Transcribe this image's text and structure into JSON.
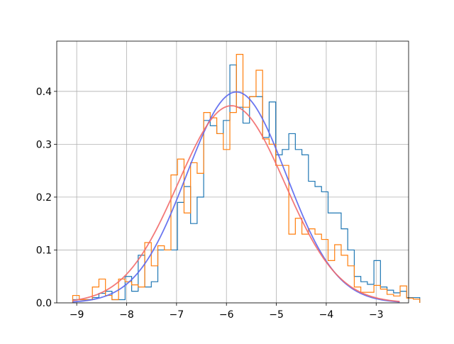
{
  "chart_data": {
    "type": "histogram",
    "title": "",
    "xlabel": "",
    "ylabel": "",
    "xlim": [
      -9.4,
      -2.35
    ],
    "ylim": [
      0.0,
      0.495
    ],
    "grid": true,
    "legend": "none",
    "x_ticks": [
      {
        "value": -9,
        "label": "−9"
      },
      {
        "value": -8,
        "label": "−8"
      },
      {
        "value": -7,
        "label": "−7"
      },
      {
        "value": -6,
        "label": "−6"
      },
      {
        "value": -5,
        "label": "−5"
      },
      {
        "value": -4,
        "label": "−4"
      },
      {
        "value": -3,
        "label": "−3"
      }
    ],
    "y_ticks": [
      {
        "value": 0.0,
        "label": "0.0"
      },
      {
        "value": 0.1,
        "label": "0.1"
      },
      {
        "value": 0.2,
        "label": "0.2"
      },
      {
        "value": 0.3,
        "label": "0.3"
      },
      {
        "value": 0.4,
        "label": "0.4"
      }
    ],
    "series": [
      {
        "color": "#1f77b4",
        "style": "step",
        "x_start": -9.08,
        "bin_width": 0.1312,
        "values": [
          0.006,
          0.006,
          0.006,
          0.01,
          0.018,
          0.022,
          0.006,
          0.006,
          0.05,
          0.022,
          0.09,
          0.03,
          0.04,
          0.1,
          0.1,
          0.1,
          0.19,
          0.22,
          0.15,
          0.2,
          0.345,
          0.335,
          0.32,
          0.345,
          0.45,
          0.37,
          0.34,
          0.39,
          0.39,
          0.313,
          0.38,
          0.28,
          0.29,
          0.32,
          0.29,
          0.28,
          0.23,
          0.22,
          0.21,
          0.17,
          0.17,
          0.14,
          0.1,
          0.05,
          0.04,
          0.035,
          0.08,
          0.03,
          0.024,
          0.019,
          0.022,
          0.01,
          0.01
        ]
      },
      {
        "color": "#ff7f0e",
        "style": "step",
        "x_start": -9.08,
        "bin_width": 0.1312,
        "values": [
          0.014,
          0.006,
          0.006,
          0.03,
          0.045,
          0.014,
          0.006,
          0.045,
          0.04,
          0.034,
          0.03,
          0.114,
          0.07,
          0.108,
          0.1,
          0.242,
          0.272,
          0.17,
          0.265,
          0.245,
          0.36,
          0.35,
          0.32,
          0.29,
          0.36,
          0.47,
          0.37,
          0.39,
          0.44,
          0.31,
          0.3,
          0.26,
          0.26,
          0.13,
          0.16,
          0.13,
          0.14,
          0.13,
          0.12,
          0.08,
          0.11,
          0.09,
          0.07,
          0.03,
          0.02,
          0.02,
          0.033,
          0.026,
          0.016,
          0.013,
          0.032,
          0.009,
          0.007
        ]
      },
      {
        "color": "#5a67ee",
        "style": "line",
        "curve": "normal_pdf",
        "mean": -5.8,
        "std": 1.0,
        "x_range": [
          -9.08,
          -2.53
        ]
      },
      {
        "color": "#f26a6a",
        "style": "line",
        "curve": "normal_pdf",
        "mean": -5.9,
        "std": 1.07,
        "x_range": [
          -9.08,
          -2.53
        ]
      }
    ]
  }
}
